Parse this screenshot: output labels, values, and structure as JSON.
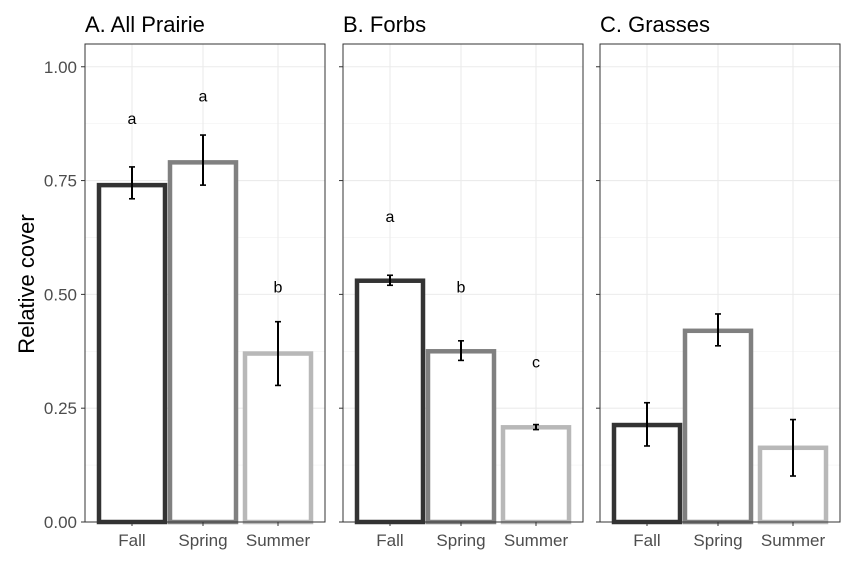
{
  "chart_data": {
    "type": "bar",
    "ylabel": "Relative cover",
    "ylim": [
      0,
      1.05
    ],
    "yticks": [
      0,
      0.25,
      0.5,
      0.75,
      1.0
    ],
    "ytick_labels": [
      "0.00",
      "0.25",
      "0.50",
      "0.75",
      "1.00"
    ],
    "grid": true,
    "categories": [
      "Fall",
      "Spring",
      "Summer"
    ],
    "category_colors": [
      "#333333",
      "#808080",
      "#b8b8b8"
    ],
    "panels": [
      {
        "title": "A. All Prairie",
        "values": [
          0.74,
          0.79,
          0.37
        ],
        "err_low": [
          0.71,
          0.74,
          0.3
        ],
        "err_high": [
          0.78,
          0.85,
          0.44
        ],
        "letters": [
          "a",
          "a",
          "b"
        ],
        "letter_y": [
          0.885,
          0.935,
          0.515
        ]
      },
      {
        "title": "B. Forbs",
        "values": [
          0.53,
          0.375,
          0.208
        ],
        "err_low": [
          0.52,
          0.355,
          0.203
        ],
        "err_high": [
          0.542,
          0.398,
          0.214
        ],
        "letters": [
          "a",
          "b",
          "c"
        ],
        "letter_y": [
          0.67,
          0.515,
          0.35
        ]
      },
      {
        "title": "C. Grasses",
        "values": [
          0.213,
          0.42,
          0.163
        ],
        "err_low": [
          0.167,
          0.387,
          0.101
        ],
        "err_high": [
          0.262,
          0.457,
          0.225
        ],
        "letters": [
          "",
          "",
          ""
        ],
        "letter_y": [
          null,
          null,
          null
        ]
      }
    ]
  }
}
